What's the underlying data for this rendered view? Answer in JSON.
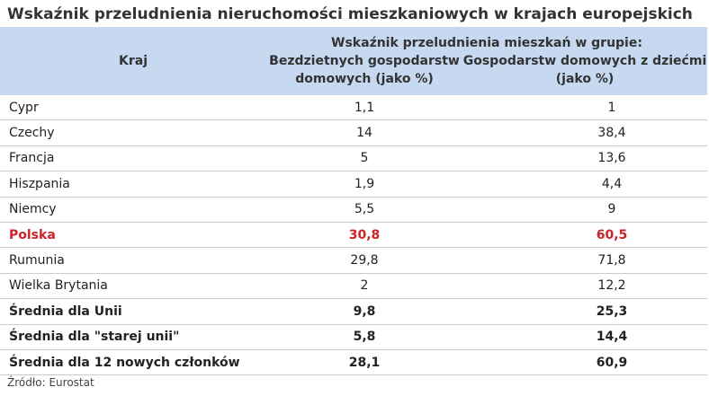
{
  "title": "Wskaźnik przeludnienia nieruchomości mieszkaniowych w krajach europejskich",
  "table": {
    "header_country": "Kraj",
    "header_group": "Wskaźnik przeludnienia mieszkań w grupie:",
    "header_col1": "Bezdzietnych gospodarstw domowych (jako %)",
    "header_col2": "Gospodarstw domowych z dziećmi (jako %)",
    "rows": [
      {
        "country": "Cypr",
        "childless": "1,1",
        "with_children": "1"
      },
      {
        "country": "Czechy",
        "childless": "14",
        "with_children": "38,4"
      },
      {
        "country": "Francja",
        "childless": "5",
        "with_children": "13,6"
      },
      {
        "country": "Hiszpania",
        "childless": "1,9",
        "with_children": "4,4"
      },
      {
        "country": "Niemcy",
        "childless": "5,5",
        "with_children": "9"
      },
      {
        "country": "Polska",
        "childless": "30,8",
        "with_children": "60,5"
      },
      {
        "country": "Rumunia",
        "childless": "29,8",
        "with_children": "71,8"
      },
      {
        "country": "Wielka Brytania",
        "childless": "2",
        "with_children": "12,2"
      },
      {
        "country": "Średnia dla Unii",
        "childless": "9,8",
        "with_children": "25,3"
      },
      {
        "country": "Średnia dla \"starej unii\"",
        "childless": "5,8",
        "with_children": "14,4"
      },
      {
        "country": "Średnia dla 12 nowych członków",
        "childless": "28,1",
        "with_children": "60,9"
      }
    ]
  },
  "colors": {
    "header_bg": "#c6d9f1",
    "highlight": "#cc2229"
  },
  "source": "Źródło: Eurostat"
}
